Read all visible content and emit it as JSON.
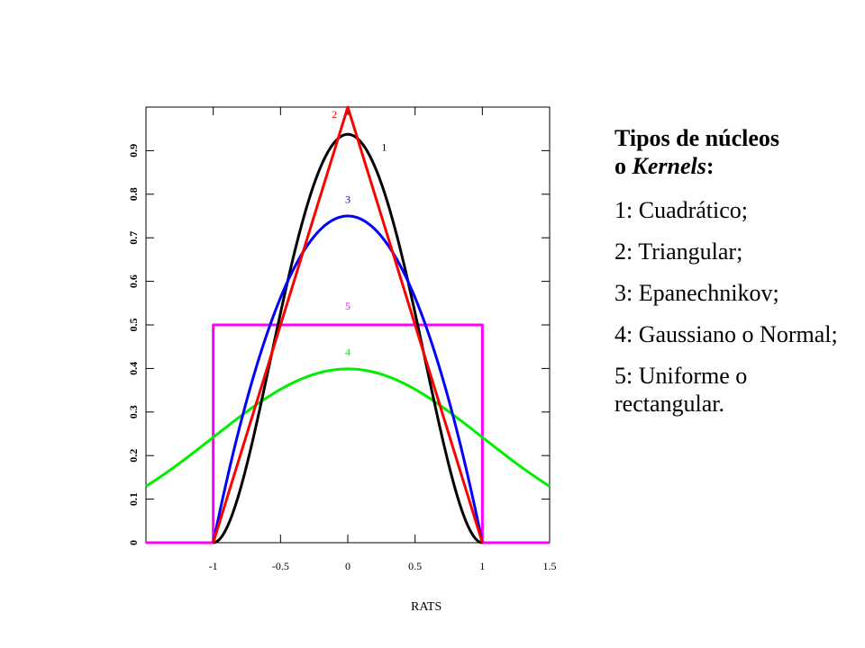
{
  "chart_data": {
    "type": "line",
    "title": "",
    "xlabel": "",
    "ylabel": "",
    "xlim": [
      -1.5,
      1.5
    ],
    "ylim": [
      0,
      1
    ],
    "x_ticks": [
      "-1",
      "-0.5",
      "0",
      "0.5",
      "1",
      "1.5"
    ],
    "x_tick_values": [
      -1,
      -0.5,
      0,
      0.5,
      1,
      1.5
    ],
    "y_ticks": [
      "0",
      "0.1",
      "0.2",
      "0.3",
      "0.4",
      "0.5",
      "0.6",
      "0.7",
      "0.8",
      "0.9"
    ],
    "y_tick_values": [
      0,
      0.1,
      0.2,
      0.3,
      0.4,
      0.5,
      0.6,
      0.7,
      0.8,
      0.9
    ],
    "grid": false,
    "series": [
      {
        "name": "1",
        "color": "#000000",
        "kernel": "quartic",
        "peak": 0.9375,
        "support": [
          -1,
          1
        ]
      },
      {
        "name": "2",
        "color": "#ff0000",
        "kernel": "triangular",
        "peak": 1.0,
        "support": [
          -1,
          1
        ]
      },
      {
        "name": "3",
        "color": "#0000ff",
        "kernel": "epanechnikov",
        "peak": 0.75,
        "support": [
          -1,
          1
        ]
      },
      {
        "name": "4",
        "color": "#00ee00",
        "kernel": "gaussian",
        "peak": 0.3989,
        "support": [
          -1.5,
          1.5
        ]
      },
      {
        "name": "5",
        "color": "#ff00ff",
        "kernel": "uniform",
        "peak": 0.5,
        "support": [
          -1,
          1
        ]
      }
    ]
  },
  "legend": {
    "title_line1": "Tipos de núcleos",
    "title_line2_prefix": "o ",
    "title_line2_italic": "Kernels",
    "title_line2_suffix": ":",
    "items": [
      "1: Cuadrático;",
      "2: Triangular;",
      "3: Epanechnikov;",
      "4: Gaussiano o Normal;",
      "5: Uniforme o rectangular."
    ]
  },
  "footer": "RATS"
}
